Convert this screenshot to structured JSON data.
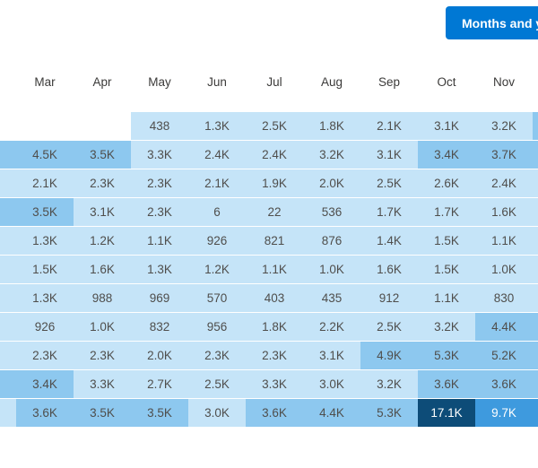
{
  "colors": {
    "accent_button": "#0078d4",
    "heat_low": "#c5e4f8",
    "heat_mid": "#8dc8ef",
    "heat_high": "#3e9ade",
    "heat_max": "#0d4c78",
    "value_text": "#4f4e4c",
    "header_text": "#3b3a39"
  },
  "toolbar": {
    "toggle_button_label": "Months and y"
  },
  "chart_data": {
    "type": "heatmap",
    "title": "",
    "columns": [
      "Mar",
      "Apr",
      "May",
      "Jun",
      "Jul",
      "Aug",
      "Sep",
      "Oct",
      "Nov"
    ],
    "cells": [
      [
        "",
        "",
        "438",
        "1.3K",
        "2.5K",
        "1.8K",
        "2.1K",
        "3.1K",
        "3.2K"
      ],
      [
        "4.5K",
        "3.5K",
        "3.3K",
        "2.4K",
        "2.4K",
        "3.2K",
        "3.1K",
        "3.4K",
        "3.7K"
      ],
      [
        "2.1K",
        "2.3K",
        "2.3K",
        "2.1K",
        "1.9K",
        "2.0K",
        "2.5K",
        "2.6K",
        "2.4K"
      ],
      [
        "3.5K",
        "3.1K",
        "2.3K",
        "6",
        "22",
        "536",
        "1.7K",
        "1.7K",
        "1.6K"
      ],
      [
        "1.3K",
        "1.2K",
        "1.1K",
        "926",
        "821",
        "876",
        "1.4K",
        "1.5K",
        "1.1K"
      ],
      [
        "1.5K",
        "1.6K",
        "1.3K",
        "1.2K",
        "1.1K",
        "1.0K",
        "1.6K",
        "1.5K",
        "1.0K"
      ],
      [
        "1.3K",
        "988",
        "969",
        "570",
        "403",
        "435",
        "912",
        "1.1K",
        "830"
      ],
      [
        "926",
        "1.0K",
        "832",
        "956",
        "1.8K",
        "2.2K",
        "2.5K",
        "3.2K",
        "4.4K"
      ],
      [
        "2.3K",
        "2.3K",
        "2.0K",
        "2.3K",
        "2.3K",
        "3.1K",
        "4.9K",
        "5.3K",
        "5.2K"
      ],
      [
        "3.4K",
        "3.3K",
        "2.7K",
        "2.5K",
        "3.3K",
        "3.0K",
        "3.2K",
        "3.6K",
        "3.6K"
      ],
      [
        "3.6K",
        "3.5K",
        "3.5K",
        "3.0K",
        "3.6K",
        "4.4K",
        "5.3K",
        "17.1K",
        "9.7K"
      ]
    ],
    "levels": [
      [
        "none",
        "none",
        "low",
        "low",
        "low",
        "low",
        "low",
        "low",
        "low"
      ],
      [
        "mid",
        "mid",
        "low",
        "low",
        "low",
        "low",
        "low",
        "mid",
        "mid"
      ],
      [
        "low",
        "low",
        "low",
        "low",
        "low",
        "low",
        "low",
        "low",
        "low"
      ],
      [
        "mid",
        "low",
        "low",
        "low",
        "low",
        "low",
        "low",
        "low",
        "low"
      ],
      [
        "low",
        "low",
        "low",
        "low",
        "low",
        "low",
        "low",
        "low",
        "low"
      ],
      [
        "low",
        "low",
        "low",
        "low",
        "low",
        "low",
        "low",
        "low",
        "low"
      ],
      [
        "low",
        "low",
        "low",
        "low",
        "low",
        "low",
        "low",
        "low",
        "low"
      ],
      [
        "low",
        "low",
        "low",
        "low",
        "low",
        "low",
        "low",
        "low",
        "mid"
      ],
      [
        "low",
        "low",
        "low",
        "low",
        "low",
        "low",
        "mid",
        "mid",
        "mid"
      ],
      [
        "mid",
        "low",
        "low",
        "low",
        "low",
        "low",
        "low",
        "mid",
        "mid"
      ],
      [
        "mid",
        "mid",
        "mid",
        "low",
        "mid",
        "mid",
        "mid",
        "max",
        "high"
      ]
    ],
    "edge_left_levels": [
      "none",
      "mid",
      "low",
      "mid",
      "low",
      "low",
      "low",
      "low",
      "low",
      "mid",
      "low"
    ],
    "edge_right_levels": [
      "mid",
      "mid",
      "low",
      "low",
      "low",
      "low",
      "low",
      "mid",
      "mid",
      "mid",
      "high"
    ],
    "legend_position": "none",
    "grid": false
  }
}
